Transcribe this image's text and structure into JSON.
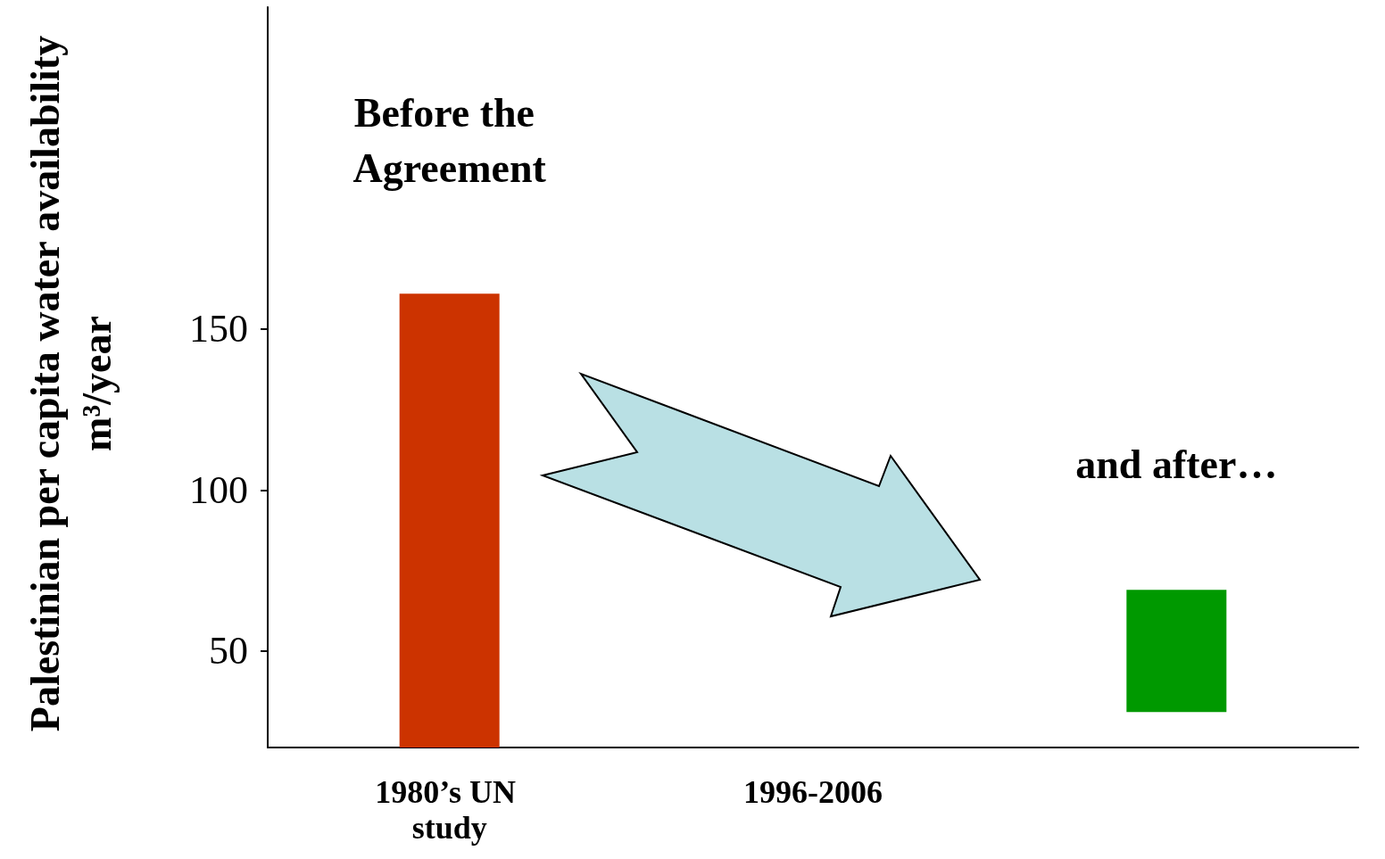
{
  "chart_data": {
    "type": "bar",
    "ylabel": "Palestinian per capita water availability m³/year",
    "categories": [
      "1980’s UN study",
      "1996-2006",
      null
    ],
    "values": [
      141,
      null,
      38
    ],
    "base": [
      20,
      null,
      31
    ],
    "colors": [
      "#cc3300",
      null,
      "#009900"
    ],
    "ylim": [
      20,
      250
    ],
    "yticks": [
      50,
      100,
      150
    ],
    "annotations": [
      "Before the Agreement",
      "and after…"
    ]
  }
}
